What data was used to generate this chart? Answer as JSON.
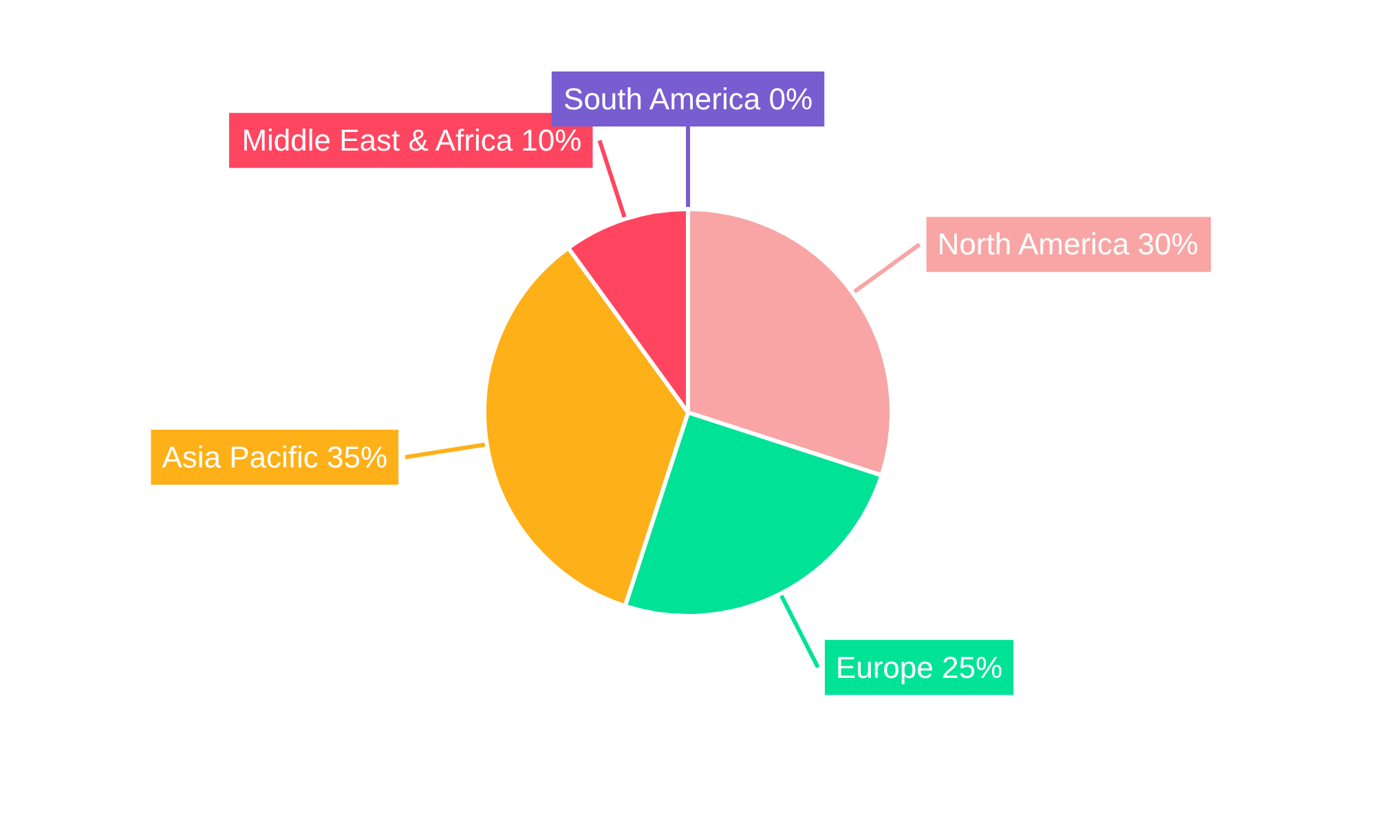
{
  "chart_data": {
    "type": "pie",
    "categories": [
      "North America",
      "Europe",
      "Asia Pacific",
      "Middle East & Africa",
      "South America"
    ],
    "values": [
      30,
      25,
      35,
      10,
      0
    ],
    "value_labels": [
      "30%",
      "25%",
      "35%",
      "10%",
      "0%"
    ],
    "colors": [
      "#f9a5a5",
      "#00e396",
      "#feb019",
      "#ff4560",
      "#775dd0"
    ],
    "legend": false
  }
}
